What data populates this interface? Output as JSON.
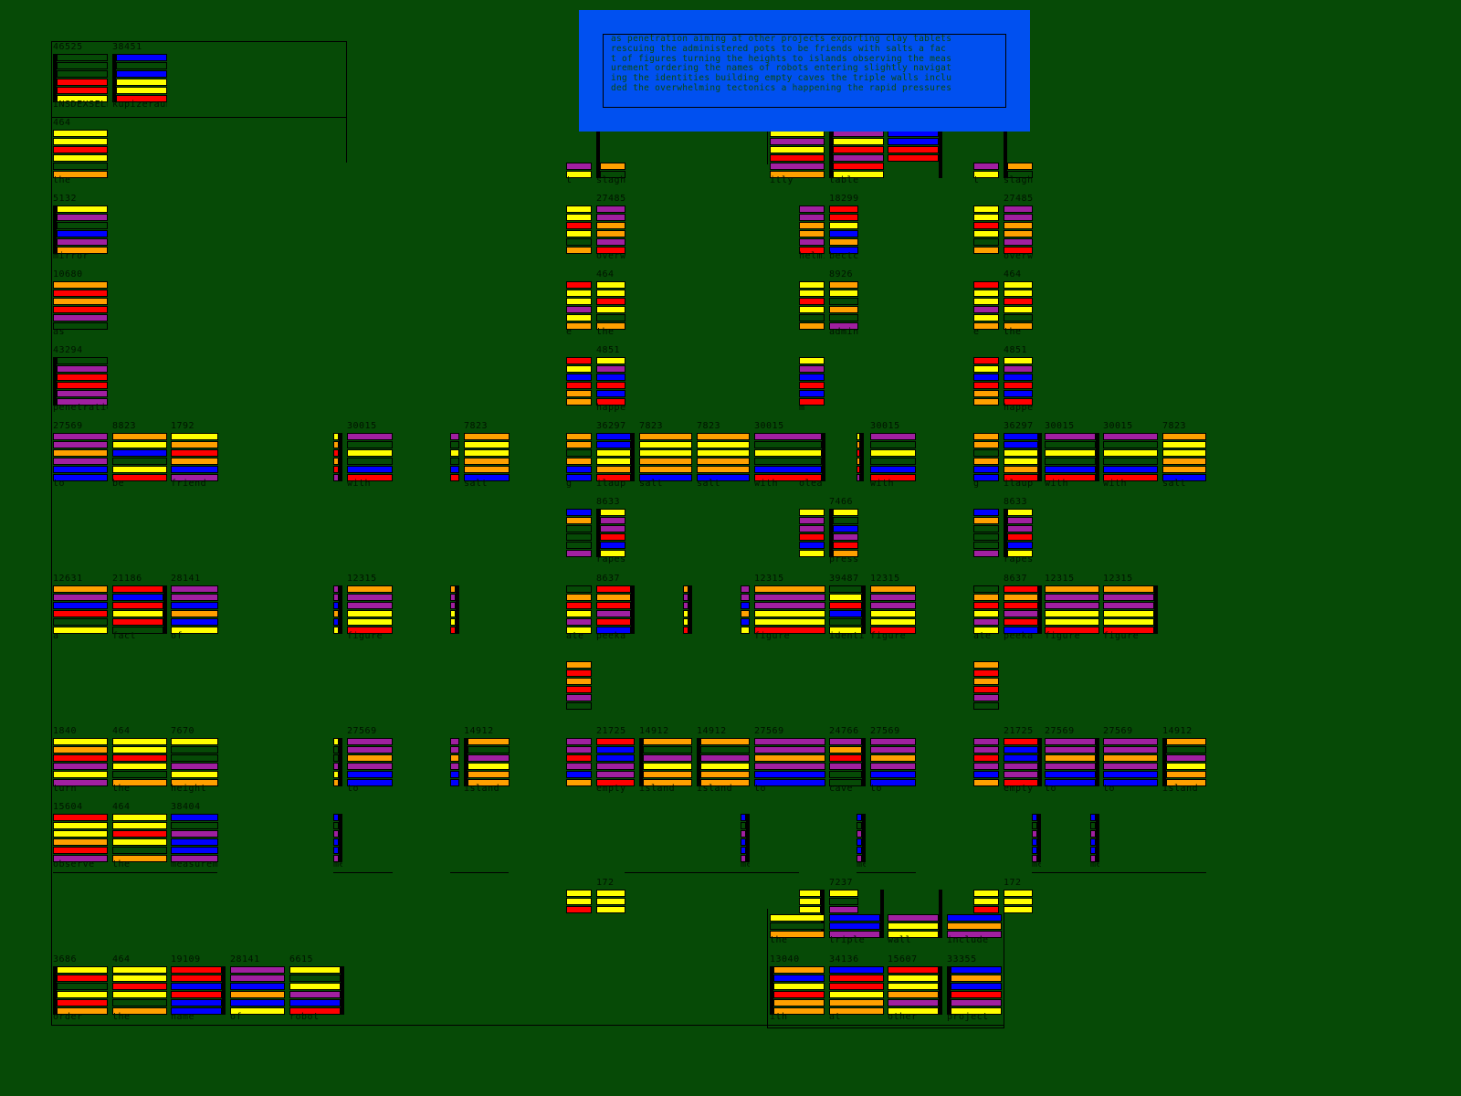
{
  "colors": {
    "Y": "#ffff00",
    "O": "#ffa000",
    "R": "#ff0000",
    "P": "#a020a0",
    "B": "#0000ff",
    "G": "#064a06",
    "background": "#064a06",
    "panel": "#0050f0"
  },
  "banner": {
    "lines": [
      "as penetration aiming at other projects exporting clay tablets",
      " rescuing the administered pots to be friends with salts a fac",
      "t of figures turning the heights to islands observing the meas",
      "urement ordering the names of robots entering slightly navigat",
      "ing the identities building empty caves the triple walls inclu",
      "ded the overwhelming tectonics a happening the rapid pressures"
    ]
  },
  "cards": [
    {
      "n": "46525",
      "l": "INSDEXSELEKT",
      "b": "GGGRRY"
    },
    {
      "n": "38451",
      "l": "kupizerauh",
      "b": "BGBYYR"
    },
    {
      "n": "464",
      "l": "the",
      "b": "YYRYGO"
    },
    {
      "n": "5132",
      "l": "mirror",
      "b": "YPGBPO"
    },
    {
      "n": "10680",
      "l": "as",
      "b": "ORORPG"
    },
    {
      "n": "43294",
      "l": "penetration",
      "b": "GPRRPP"
    },
    {
      "n": "27569",
      "l": "to",
      "b": "PPOPBB"
    },
    {
      "n": "8823",
      "l": "be",
      "b": "OYBGYR"
    },
    {
      "n": "1792",
      "l": "friend",
      "b": "YOROBP"
    },
    {
      "n": "",
      "l": "",
      "b": "YORORP"
    },
    {
      "n": "30015",
      "l": "with",
      "b": "PGYGBR"
    },
    {
      "n": "",
      "l": "",
      "b": "PGYGBR"
    },
    {
      "n": "7823",
      "l": "salt",
      "b": "OYYOOB"
    },
    {
      "n": "12631",
      "l": "a",
      "b": "OPBRGY"
    },
    {
      "n": "21186",
      "l": "fact",
      "b": "RBRYRG"
    },
    {
      "n": "28141",
      "l": "of",
      "b": "PPBOBY"
    },
    {
      "n": "",
      "l": "",
      "b": "PPBOBY"
    },
    {
      "n": "12315",
      "l": "figure",
      "b": "OPPYYR"
    },
    {
      "n": "",
      "l": "",
      "b": "OPPYYR"
    },
    {
      "n": "1840",
      "l": "turn",
      "b": "YORPYP"
    },
    {
      "n": "464",
      "l": "the",
      "b": "YYRYGO"
    },
    {
      "n": "7670",
      "l": "height",
      "b": "YGGPYO"
    },
    {
      "n": "",
      "l": "",
      "b": "YGGPYO"
    },
    {
      "n": "27569",
      "l": "to",
      "b": "PPOPBB"
    },
    {
      "n": "",
      "l": "",
      "b": "PPOPBB"
    },
    {
      "n": "14912",
      "l": "island",
      "b": "OGPYOO"
    },
    {
      "n": "15604",
      "l": "observe",
      "b": "RYYORP"
    },
    {
      "n": "464",
      "l": "the",
      "b": "YYRYGO"
    },
    {
      "n": "38404",
      "l": "measurement",
      "b": "BGPBBP"
    },
    {
      "n": "",
      "l": "ment",
      "b": "BGPBBP"
    },
    {
      "n": "3686",
      "l": "order",
      "b": "YRGYRO"
    },
    {
      "n": "464",
      "l": "the",
      "b": "YYRYGO"
    },
    {
      "n": "19109",
      "l": "name",
      "b": "RRBRBB"
    },
    {
      "n": "28141",
      "l": "of",
      "b": "PPBOBY"
    },
    {
      "n": "6615",
      "l": "robot",
      "b": "YGYPBR"
    },
    {
      "n": "",
      "l": "t",
      "b": "----PY"
    },
    {
      "n": "",
      "l": "slagh",
      "b": "----OG"
    },
    {
      "n": "27485",
      "l": "overw",
      "b": "PPOOPR"
    },
    {
      "n": "",
      "l": "",
      "b": "YYRYGO"
    },
    {
      "n": "464",
      "l": "the",
      "b": "YYRYGO"
    },
    {
      "n": "",
      "l": "e",
      "b": "RYYPYO"
    },
    {
      "n": "4851",
      "l": "happe",
      "b": "YPBRBR"
    },
    {
      "n": "",
      "l": "",
      "b": "RYBROO"
    },
    {
      "n": "",
      "l": "g",
      "b": "OOGOBB"
    },
    {
      "n": "36297",
      "l": "ilaup",
      "b": "BBYYOR"
    },
    {
      "n": "7823",
      "l": "salt",
      "b": "OYYOOB"
    },
    {
      "n": "7823",
      "l": "salt",
      "b": "OYYOOB"
    },
    {
      "n": "30015",
      "l": "with",
      "b": "PGYGBR"
    },
    {
      "n": "",
      "l": "olea",
      "b": "------"
    },
    {
      "n": "",
      "l": "",
      "b": "YORORP"
    },
    {
      "n": "30015",
      "l": "with",
      "b": "PGYGBR"
    },
    {
      "n": "",
      "l": "",
      "b": "BOGGGP"
    },
    {
      "n": "8633",
      "l": "rapes",
      "b": "YPPRBY"
    },
    {
      "n": "",
      "l": "",
      "b": "YPPRBY"
    },
    {
      "n": "7466",
      "l": "press",
      "b": "YGBPRO"
    },
    {
      "n": "",
      "l": "ate",
      "b": "GORYPY"
    },
    {
      "n": "8637",
      "l": "peeka",
      "b": "RORPRB"
    },
    {
      "n": "",
      "l": "",
      "b": "OPPYYR"
    },
    {
      "n": "",
      "l": "",
      "b": "PPBOBY"
    },
    {
      "n": "12315",
      "l": "figure",
      "b": "OPPYYR"
    },
    {
      "n": "39487",
      "l": "identi",
      "b": "GYRBGY"
    },
    {
      "n": "12315",
      "l": "figure",
      "b": "OPPYYR"
    },
    {
      "n": "",
      "l": "",
      "b": "ORORPG"
    },
    {
      "n": "",
      "l": "",
      "b": "PPRPBO"
    },
    {
      "n": "21725",
      "l": "empty",
      "b": "RBBPPR"
    },
    {
      "n": "14912",
      "l": "island",
      "b": "OGPYOO"
    },
    {
      "n": "14912",
      "l": "island",
      "b": "OGPYOO"
    },
    {
      "n": "27569",
      "l": "to",
      "b": "PPOPBB"
    },
    {
      "n": "24766",
      "l": "cave",
      "b": "PORPGG"
    },
    {
      "n": "27569",
      "l": "to",
      "b": "PPOPBB"
    },
    {
      "n": "",
      "l": "ment",
      "b": "BGPBBP"
    },
    {
      "n": "",
      "l": "ment",
      "b": "BGPBBP"
    },
    {
      "n": "",
      "l": "",
      "b": "YYR---"
    },
    {
      "n": "172",
      "l": "",
      "b": "YYY---"
    },
    {
      "n": "",
      "l": "",
      "b": "YYY---"
    },
    {
      "n": "7237",
      "l": "",
      "b": "YGP---"
    },
    {
      "n": "",
      "l": "the",
      "b": "---YGO"
    },
    {
      "n": "",
      "l": "triple",
      "b": "---BBP"
    },
    {
      "n": "",
      "l": "wall",
      "b": "---PYY"
    },
    {
      "n": "",
      "l": "include",
      "b": "---BOP"
    },
    {
      "n": "13040",
      "l": "ith",
      "b": "OBYROO"
    },
    {
      "n": "34136",
      "l": "at",
      "b": "BRRYOO"
    },
    {
      "n": "15607",
      "l": "other",
      "b": "RYYOPY"
    },
    {
      "n": "33355",
      "l": "project",
      "b": "BOBRPY"
    },
    {
      "n": "",
      "l": "itly",
      "b": "YPYRPO"
    },
    {
      "n": "",
      "l": "table",
      "b": "PYRPRY"
    },
    {
      "n": "",
      "l": "",
      "b": "BBRR--"
    },
    {
      "n": "",
      "l": "helming",
      "b": "PPOOPR"
    },
    {
      "n": "18299",
      "l": "bectc",
      "b": "RRYBOB"
    },
    {
      "n": "",
      "l": "",
      "b": "YYRYGO"
    },
    {
      "n": "8926",
      "l": "admin",
      "b": "OYGOGP"
    },
    {
      "n": "",
      "l": "m",
      "b": "YPBRBR"
    },
    {
      "n": "",
      "l": "t",
      "b": "----PY"
    },
    {
      "n": "",
      "l": "slagh",
      "b": "----OG"
    },
    {
      "n": "27485",
      "l": "overw",
      "b": "PPOOPR"
    },
    {
      "n": "",
      "l": "",
      "b": "YYRYGO"
    },
    {
      "n": "464",
      "l": "the",
      "b": "YYRYGO"
    },
    {
      "n": "",
      "l": "e",
      "b": "RYYPYO"
    },
    {
      "n": "4851",
      "l": "happe",
      "b": "YPBRBR"
    },
    {
      "n": "",
      "l": "",
      "b": "RYBROO"
    },
    {
      "n": "",
      "l": "g",
      "b": "OOGOBB"
    },
    {
      "n": "36297",
      "l": "ilaup",
      "b": "BBYYOR"
    },
    {
      "n": "30015",
      "l": "with",
      "b": "PGYGBR"
    },
    {
      "n": "30015",
      "l": "with",
      "b": "PGYGBR"
    },
    {
      "n": "7823",
      "l": "salt",
      "b": "OYYOOB"
    },
    {
      "n": "",
      "l": "",
      "b": "BOGGGP"
    },
    {
      "n": "8633",
      "l": "rapes",
      "b": "YPPRBY"
    },
    {
      "n": "",
      "l": "ate",
      "b": "GORYPY"
    },
    {
      "n": "8637",
      "l": "peeka",
      "b": "RORPRB"
    },
    {
      "n": "12315",
      "l": "figure",
      "b": "OPPYYR"
    },
    {
      "n": "12315",
      "l": "figure",
      "b": "OPPYYR"
    },
    {
      "n": "",
      "l": "",
      "b": "ORORPG"
    },
    {
      "n": "",
      "l": "",
      "b": "PPRPBO"
    },
    {
      "n": "21725",
      "l": "empty",
      "b": "RBBPPR"
    },
    {
      "n": "27569",
      "l": "to",
      "b": "PPOPBB"
    },
    {
      "n": "27569",
      "l": "to",
      "b": "PPOPBB"
    },
    {
      "n": "14912",
      "l": "island",
      "b": "OGPYOO"
    },
    {
      "n": "",
      "l": "ment",
      "b": "BGPBBP"
    },
    {
      "n": "",
      "l": "ment",
      "b": "BGPBBP"
    },
    {
      "n": "",
      "l": "",
      "b": "YYR---"
    },
    {
      "n": "172",
      "l": "",
      "b": "YYY---"
    }
  ]
}
